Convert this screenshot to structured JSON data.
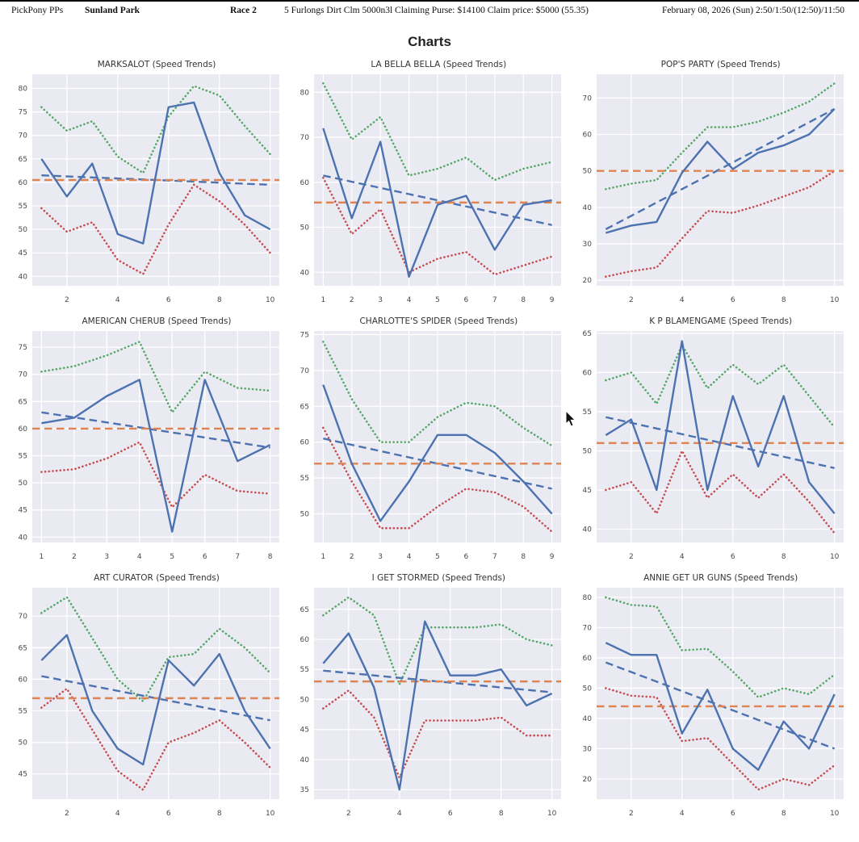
{
  "header": {
    "brand": "PickPony PPs",
    "track": "Sunland Park",
    "race": "Race 2",
    "conditions": "5 Furlongs Dirt Clm 5000n3l Claiming Purse: $14100 Claim price: $5000 (55.35)",
    "datetime": "February 08, 2026 (Sun) 2:50/1:50/(12:50)/11:50"
  },
  "page_title": "Charts",
  "colors": {
    "plot_background": "#eaeaf2",
    "gridline": "#ffffff",
    "speed_line": "#4c72b0",
    "high_line": "#55a868",
    "low_line": "#c44e52",
    "average_line": "#dd8452",
    "trend_line": "#4c72b0"
  },
  "chart_data": [
    {
      "type": "line",
      "title": "MARKSALOT (Speed Trends)",
      "x": [
        1,
        2,
        3,
        4,
        5,
        6,
        7,
        8,
        9,
        10
      ],
      "xticks": [
        2,
        4,
        6,
        8,
        10
      ],
      "yticks": [
        40,
        45,
        50,
        55,
        60,
        65,
        70,
        75,
        80
      ],
      "ylim": [
        38,
        83
      ],
      "series": [
        {
          "name": "high",
          "style": "dotted",
          "color": "#55a868",
          "values": [
            76,
            71,
            73,
            65.5,
            62,
            74,
            80.5,
            78.5,
            72,
            66
          ]
        },
        {
          "name": "low",
          "style": "dotted",
          "color": "#c44e52",
          "values": [
            54.5,
            49.5,
            51.5,
            43.5,
            40.5,
            51,
            59.5,
            56,
            51,
            45
          ]
        },
        {
          "name": "trend",
          "style": "dashed",
          "color": "#4c72b0",
          "start": 61.5,
          "end": 59.5
        },
        {
          "name": "average",
          "style": "dashed",
          "color": "#dd8452",
          "value": 60.5
        },
        {
          "name": "speed",
          "style": "solid",
          "color": "#4c72b0",
          "values": [
            65,
            57,
            64,
            49,
            47,
            76,
            77,
            62,
            53,
            50
          ]
        }
      ]
    },
    {
      "type": "line",
      "title": "LA BELLA BELLA (Speed Trends)",
      "x": [
        1,
        2,
        3,
        4,
        5,
        6,
        7,
        8,
        9
      ],
      "xticks": [
        1,
        2,
        3,
        4,
        5,
        6,
        7,
        8,
        9
      ],
      "yticks": [
        40,
        50,
        60,
        70,
        80
      ],
      "ylim": [
        37,
        84
      ],
      "series": [
        {
          "name": "high",
          "style": "dotted",
          "color": "#55a868",
          "values": [
            82,
            69.5,
            74.5,
            61.5,
            63,
            65.5,
            60.5,
            63,
            64.5
          ]
        },
        {
          "name": "low",
          "style": "dotted",
          "color": "#c44e52",
          "values": [
            61,
            48.5,
            54,
            40,
            43,
            44.5,
            39.5,
            41.5,
            43.5
          ]
        },
        {
          "name": "trend",
          "style": "dashed",
          "color": "#4c72b0",
          "start": 61.5,
          "end": 50.5
        },
        {
          "name": "average",
          "style": "dashed",
          "color": "#dd8452",
          "value": 55.5
        },
        {
          "name": "speed",
          "style": "solid",
          "color": "#4c72b0",
          "values": [
            72,
            52,
            69,
            39,
            55,
            57,
            45,
            55,
            56
          ]
        }
      ]
    },
    {
      "type": "line",
      "title": "POP'S PARTY (Speed Trends)",
      "x": [
        1,
        2,
        3,
        4,
        5,
        6,
        7,
        8,
        9,
        10
      ],
      "xticks": [
        2,
        4,
        6,
        8,
        10
      ],
      "yticks": [
        20,
        30,
        40,
        50,
        60,
        70
      ],
      "ylim": [
        18.5,
        76.5
      ],
      "series": [
        {
          "name": "high",
          "style": "dotted",
          "color": "#55a868",
          "values": [
            45,
            46.5,
            47.5,
            55,
            62,
            62,
            63.5,
            66,
            69,
            74
          ]
        },
        {
          "name": "low",
          "style": "dotted",
          "color": "#c44e52",
          "values": [
            21,
            22.5,
            23.5,
            31.5,
            39,
            38.5,
            40.5,
            43,
            45.5,
            50
          ]
        },
        {
          "name": "trend",
          "style": "dashed",
          "color": "#4c72b0",
          "start": 34,
          "end": 67
        },
        {
          "name": "average",
          "style": "dashed",
          "color": "#dd8452",
          "value": 50
        },
        {
          "name": "speed",
          "style": "solid",
          "color": "#4c72b0",
          "values": [
            33,
            35,
            36,
            49.5,
            58,
            50.5,
            55,
            57,
            60,
            67
          ]
        }
      ]
    },
    {
      "type": "line",
      "title": "AMERICAN CHERUB (Speed Trends)",
      "x": [
        1,
        2,
        3,
        4,
        5,
        6,
        7,
        8
      ],
      "xticks": [
        1,
        2,
        3,
        4,
        5,
        6,
        7,
        8
      ],
      "yticks": [
        40,
        45,
        50,
        55,
        60,
        65,
        70,
        75
      ],
      "ylim": [
        39,
        78
      ],
      "series": [
        {
          "name": "high",
          "style": "dotted",
          "color": "#55a868",
          "values": [
            70.5,
            71.5,
            73.5,
            76,
            63,
            70.5,
            67.5,
            67
          ]
        },
        {
          "name": "low",
          "style": "dotted",
          "color": "#c44e52",
          "values": [
            52,
            52.5,
            54.5,
            57.5,
            45.5,
            51.5,
            48.5,
            48
          ]
        },
        {
          "name": "trend",
          "style": "dashed",
          "color": "#4c72b0",
          "start": 63,
          "end": 56.5
        },
        {
          "name": "average",
          "style": "dashed",
          "color": "#dd8452",
          "value": 60
        },
        {
          "name": "speed",
          "style": "solid",
          "color": "#4c72b0",
          "values": [
            61,
            62,
            66,
            69,
            41,
            69,
            54,
            57
          ]
        }
      ]
    },
    {
      "type": "line",
      "title": "CHARLOTTE'S SPIDER (Speed Trends)",
      "x": [
        1,
        2,
        3,
        4,
        5,
        6,
        7,
        8,
        9
      ],
      "xticks": [
        1,
        2,
        3,
        4,
        5,
        6,
        7,
        8,
        9
      ],
      "yticks": [
        50,
        55,
        60,
        65,
        70,
        75
      ],
      "ylim": [
        46,
        75.5
      ],
      "series": [
        {
          "name": "high",
          "style": "dotted",
          "color": "#55a868",
          "values": [
            74,
            66,
            60,
            60,
            63.5,
            65.5,
            65,
            62,
            59.5
          ]
        },
        {
          "name": "low",
          "style": "dotted",
          "color": "#c44e52",
          "values": [
            62,
            54.5,
            48,
            48,
            51,
            53.5,
            53,
            51,
            47.5
          ]
        },
        {
          "name": "trend",
          "style": "dashed",
          "color": "#4c72b0",
          "start": 60.5,
          "end": 53.5
        },
        {
          "name": "average",
          "style": "dashed",
          "color": "#dd8452",
          "value": 57
        },
        {
          "name": "speed",
          "style": "solid",
          "color": "#4c72b0",
          "values": [
            68,
            57,
            49,
            54.5,
            61,
            61,
            58.5,
            54.5,
            50
          ]
        }
      ]
    },
    {
      "type": "line",
      "title": "K P BLAMENGAME (Speed Trends)",
      "x": [
        1,
        2,
        3,
        4,
        5,
        6,
        7,
        8,
        9,
        10
      ],
      "xticks": [
        2,
        4,
        6,
        8,
        10
      ],
      "yticks": [
        40,
        45,
        50,
        55,
        60,
        65
      ],
      "ylim": [
        38.3,
        65.3
      ],
      "series": [
        {
          "name": "high",
          "style": "dotted",
          "color": "#55a868",
          "values": [
            59,
            60,
            56,
            63.5,
            58,
            61,
            58.5,
            61,
            57,
            53
          ]
        },
        {
          "name": "low",
          "style": "dotted",
          "color": "#c44e52",
          "values": [
            45,
            46,
            42,
            50,
            44,
            47,
            44,
            47,
            43.5,
            39.5
          ]
        },
        {
          "name": "trend",
          "style": "dashed",
          "color": "#4c72b0",
          "start": 54.3,
          "end": 47.8
        },
        {
          "name": "average",
          "style": "dashed",
          "color": "#dd8452",
          "value": 51
        },
        {
          "name": "speed",
          "style": "solid",
          "color": "#4c72b0",
          "values": [
            52,
            54,
            45,
            64,
            45,
            57,
            48,
            57,
            46,
            42
          ]
        }
      ]
    },
    {
      "type": "line",
      "title": "ART CURATOR (Speed Trends)",
      "x": [
        1,
        2,
        3,
        4,
        5,
        6,
        7,
        8,
        9,
        10
      ],
      "xticks": [
        2,
        4,
        6,
        8,
        10
      ],
      "yticks": [
        45,
        50,
        55,
        60,
        65,
        70
      ],
      "ylim": [
        41,
        74.5
      ],
      "series": [
        {
          "name": "high",
          "style": "dotted",
          "color": "#55a868",
          "values": [
            70.5,
            73,
            66.5,
            60,
            56.5,
            63.5,
            64,
            68,
            65,
            61
          ]
        },
        {
          "name": "low",
          "style": "dotted",
          "color": "#c44e52",
          "values": [
            55.5,
            58.5,
            52,
            45.5,
            42.5,
            50,
            51.5,
            53.5,
            50,
            46
          ]
        },
        {
          "name": "trend",
          "style": "dashed",
          "color": "#4c72b0",
          "start": 60.5,
          "end": 53.5
        },
        {
          "name": "average",
          "style": "dashed",
          "color": "#dd8452",
          "value": 57
        },
        {
          "name": "speed",
          "style": "solid",
          "color": "#4c72b0",
          "values": [
            63,
            67,
            55,
            49,
            46.5,
            63,
            59,
            64,
            55,
            49
          ]
        }
      ]
    },
    {
      "type": "line",
      "title": "I GET STORMED (Speed Trends)",
      "x": [
        1,
        2,
        3,
        4,
        5,
        6,
        7,
        8,
        9,
        10
      ],
      "xticks": [
        2,
        4,
        6,
        8,
        10
      ],
      "yticks": [
        35,
        40,
        45,
        50,
        55,
        60,
        65
      ],
      "ylim": [
        33.4,
        68.6
      ],
      "series": [
        {
          "name": "high",
          "style": "dotted",
          "color": "#55a868",
          "values": [
            64,
            67,
            64,
            52.5,
            62,
            62,
            62,
            62.5,
            60,
            59
          ]
        },
        {
          "name": "low",
          "style": "dotted",
          "color": "#c44e52",
          "values": [
            48.5,
            51.5,
            47,
            37,
            46.5,
            46.5,
            46.5,
            47,
            44,
            44
          ]
        },
        {
          "name": "trend",
          "style": "dashed",
          "color": "#4c72b0",
          "start": 54.8,
          "end": 51.2
        },
        {
          "name": "average",
          "style": "dashed",
          "color": "#dd8452",
          "value": 53
        },
        {
          "name": "speed",
          "style": "solid",
          "color": "#4c72b0",
          "values": [
            56,
            61,
            52,
            35,
            63,
            54,
            54,
            55,
            49,
            51
          ]
        }
      ]
    },
    {
      "type": "line",
      "title": "ANNIE GET UR GUNS (Speed Trends)",
      "x": [
        1,
        2,
        3,
        4,
        5,
        6,
        7,
        8,
        9,
        10
      ],
      "xticks": [
        2,
        4,
        6,
        8,
        10
      ],
      "yticks": [
        20,
        30,
        40,
        50,
        60,
        70,
        80
      ],
      "ylim": [
        13.3,
        83.2
      ],
      "series": [
        {
          "name": "high",
          "style": "dotted",
          "color": "#55a868",
          "values": [
            80,
            77.5,
            77,
            62.5,
            63,
            55.5,
            47,
            50,
            48,
            54.5
          ]
        },
        {
          "name": "low",
          "style": "dotted",
          "color": "#c44e52",
          "values": [
            50,
            47.5,
            47,
            32.5,
            33.5,
            25,
            16.5,
            20,
            18,
            24.5
          ]
        },
        {
          "name": "trend",
          "style": "dashed",
          "color": "#4c72b0",
          "start": 58.5,
          "end": 30
        },
        {
          "name": "average",
          "style": "dashed",
          "color": "#dd8452",
          "value": 44
        },
        {
          "name": "speed",
          "style": "solid",
          "color": "#4c72b0",
          "values": [
            65,
            61,
            61,
            35,
            49.5,
            30,
            23,
            39,
            30,
            48
          ]
        }
      ]
    }
  ]
}
